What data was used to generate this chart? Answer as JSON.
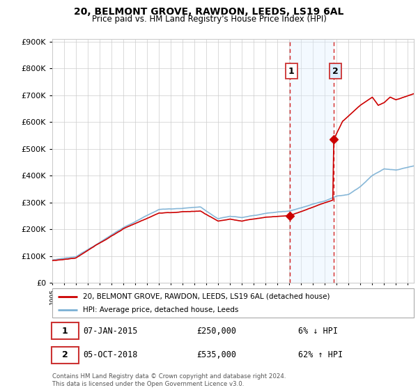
{
  "title": "20, BELMONT GROVE, RAWDON, LEEDS, LS19 6AL",
  "subtitle": "Price paid vs. HM Land Registry's House Price Index (HPI)",
  "sale1_date": 2015.03,
  "sale1_price": 250000,
  "sale1_label": "07-JAN-2015",
  "sale1_pct": "6% ↓ HPI",
  "sale2_date": 2018.75,
  "sale2_price": 535000,
  "sale2_label": "05-OCT-2018",
  "sale2_pct": "62% ↑ HPI",
  "legend_line1": "20, BELMONT GROVE, RAWDON, LEEDS, LS19 6AL (detached house)",
  "legend_line2": "HPI: Average price, detached house, Leeds",
  "footer": "Contains HM Land Registry data © Crown copyright and database right 2024.\nThis data is licensed under the Open Government Licence v3.0.",
  "xmin": 1995,
  "xmax": 2025.5,
  "ymin": 0,
  "ymax": 900000,
  "property_color": "#cc0000",
  "hpi_color": "#7ab0d4",
  "shade_color": "#ddeeff",
  "vline_color": "#cc0000",
  "background_color": "#ffffff",
  "grid_color": "#cccccc",
  "num_box_color": "#cc3333"
}
